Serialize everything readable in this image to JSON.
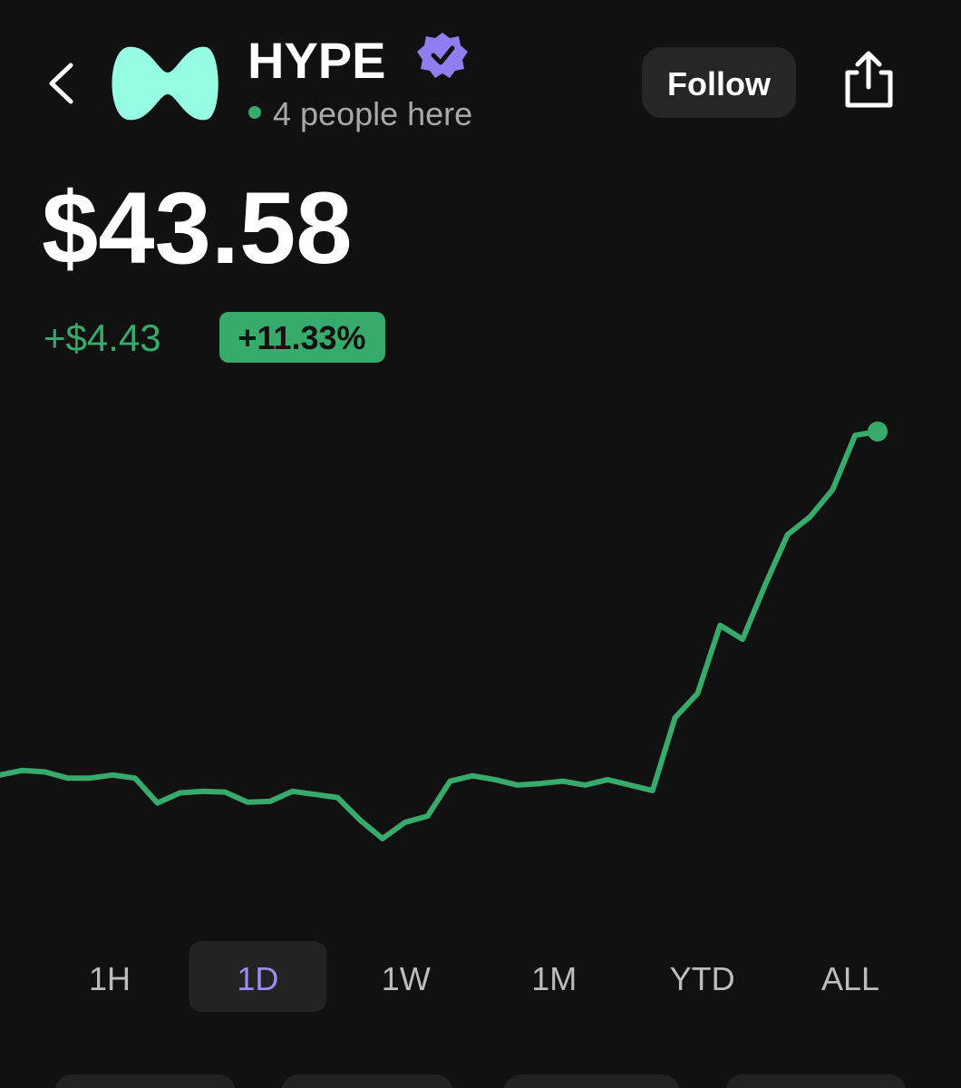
{
  "header": {
    "title": "HYPE",
    "presence": "4 people here",
    "follow": "Follow"
  },
  "quote": {
    "price": "$43.58",
    "change": "+$4.43",
    "change_pct": "+11.33%"
  },
  "chart_data": {
    "type": "line",
    "color": "#36ab6b",
    "values": [
      39.15,
      39.21,
      39.19,
      39.11,
      39.11,
      39.15,
      39.11,
      38.79,
      38.92,
      38.94,
      38.93,
      38.8,
      38.81,
      38.94,
      38.9,
      38.86,
      38.57,
      38.33,
      38.54,
      38.62,
      39.07,
      39.14,
      39.09,
      39.02,
      39.04,
      39.07,
      39.02,
      39.09,
      39.02,
      38.95,
      39.89,
      40.2,
      41.08,
      40.9,
      41.6,
      42.25,
      42.48,
      42.83,
      43.53,
      43.58
    ],
    "ylim": [
      37.92,
      44.0
    ]
  },
  "ranges": {
    "items": [
      "1H",
      "1D",
      "1W",
      "1M",
      "YTD",
      "ALL"
    ],
    "selected": 1
  }
}
